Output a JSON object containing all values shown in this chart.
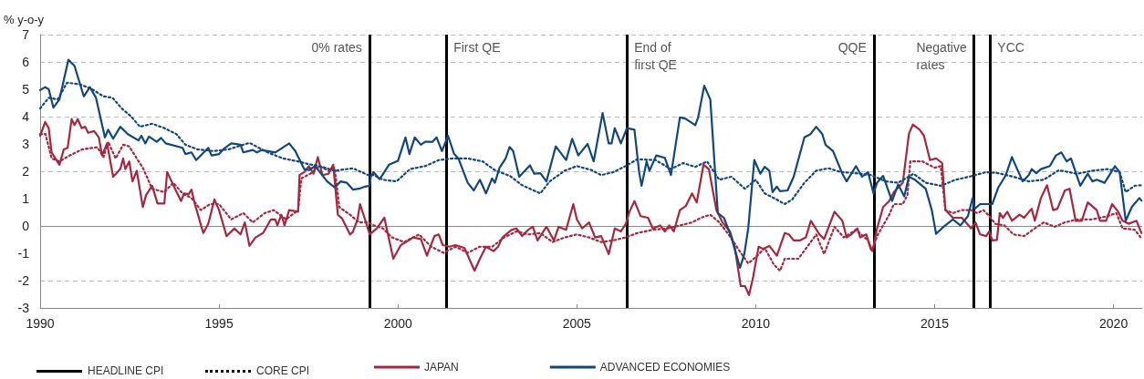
{
  "chart_data": {
    "type": "line",
    "ylabel": "% y-o-y",
    "xlim": [
      1990,
      2020.8
    ],
    "xticks": [
      1990,
      1995,
      2000,
      2005,
      2010,
      2015,
      2020
    ],
    "ylim": [
      -3,
      7
    ],
    "yticks": [
      -3,
      -2,
      -1,
      0,
      1,
      2,
      3,
      4,
      5,
      6,
      7
    ],
    "grid": "y",
    "legend": "bottom left",
    "marker": "none",
    "annotations": [
      "HEADLINE CPI",
      "CORE CPI"
    ],
    "ref_lines": [
      {
        "axis": "y",
        "value": 0,
        "color": "#8c8c8c"
      },
      {
        "axis": "x",
        "value": 1999.2,
        "label": "0% rates",
        "color": "#000000"
      },
      {
        "axis": "x",
        "value": 2001.35,
        "label": "First QE",
        "color": "#000000"
      },
      {
        "axis": "x",
        "value": 2006.4,
        "label": "End of\nfirst QE",
        "color": "#000000"
      },
      {
        "axis": "x",
        "value": 2013.3,
        "label": "QQE",
        "color": "#000000"
      },
      {
        "axis": "x",
        "value": 2016.1,
        "label": "Negative\nrates",
        "color": "#000000"
      },
      {
        "axis": "x",
        "value": 2016.55,
        "label": "YCC",
        "color": "#000000"
      }
    ],
    "series": [
      {
        "name": "JAPAN",
        "color": "#a5283f",
        "line_style": "solid",
        "x": [
          1990,
          1990.14,
          1990.24,
          1990.32,
          1990.54,
          1990.66,
          1990.77,
          1990.88,
          1990.96,
          1991.05,
          1991.16,
          1991.26,
          1991.34,
          1991.51,
          1991.64,
          1991.73,
          1991.87,
          1992.04,
          1992.24,
          1992.32,
          1992.38,
          1992.49,
          1992.58,
          1992.7,
          1992.87,
          1992.96,
          1993.13,
          1993.28,
          1993.47,
          1993.55,
          1993.77,
          1993.94,
          1994.02,
          1994.15,
          1994.23,
          1994.32,
          1994.56,
          1994.7,
          1994.87,
          1995,
          1995.21,
          1995.43,
          1995.6,
          1995.72,
          1995.85,
          1996.02,
          1996.23,
          1996.45,
          1996.57,
          1996.63,
          1996.74,
          1996.83,
          1996.96,
          1997.21,
          1997.25,
          1997.38,
          1997.51,
          1997.64,
          1997.76,
          1997.89,
          1998.06,
          1998.19,
          1998.23,
          1998.32,
          1998.44,
          1998.66,
          1998.74,
          1998.87,
          1998.94,
          1999.08,
          1999.21,
          1999.41,
          1999.62,
          1999.87,
          2000.08,
          2000.3,
          2000.42,
          2000.64,
          2000.81,
          2001.02,
          2001.14,
          2001.25,
          2001.44,
          2001.61,
          2001.86,
          2002.14,
          2002.29,
          2002.46,
          2002.67,
          2002.8,
          2002.92,
          2003.18,
          2003.31,
          2003.47,
          2003.64,
          2003.77,
          2003.9,
          2004.15,
          2004.36,
          2004.49,
          2004.7,
          2004.9,
          2005,
          2005.15,
          2005.34,
          2005.51,
          2005.68,
          2005.89,
          2006.06,
          2006.23,
          2006.37,
          2006.47,
          2006.61,
          2006.78,
          2006.99,
          2007.12,
          2007.33,
          2007.46,
          2007.58,
          2007.71,
          2007.88,
          2008.05,
          2008.22,
          2008.35,
          2008.54,
          2008.69,
          2008.9,
          2009.07,
          2009.28,
          2009.41,
          2009.58,
          2009.7,
          2009.81,
          2009.92,
          2010.08,
          2010.21,
          2010.38,
          2010.59,
          2010.81,
          2010.93,
          2011.06,
          2011.23,
          2011.4,
          2011.54,
          2011.78,
          2011.91,
          2012.2,
          2012.42,
          2012.54,
          2012.67,
          2012.84,
          2012.92,
          2013.09,
          2013.22,
          2013.29,
          2013.39,
          2013.56,
          2013.73,
          2013.86,
          2014.03,
          2014.11,
          2014.28,
          2014.39,
          2014.58,
          2014.7,
          2014.87,
          2015.04,
          2015.21,
          2015.3,
          2015.51,
          2015.76,
          2016.02,
          2016.14,
          2016.27,
          2016.44,
          2016.53,
          2016.61,
          2016.74,
          2016.82,
          2016.91,
          2017.03,
          2017.16,
          2017.37,
          2017.5,
          2017.71,
          2017.8,
          2017.97,
          2018.14,
          2018.31,
          2018.43,
          2018.64,
          2018.77,
          2018.94,
          2019.11,
          2019.28,
          2019.53,
          2019.62,
          2019.79,
          2019.96,
          2020.13,
          2020.25,
          2020.42,
          2020.64,
          2020.78
        ],
        "values": [
          3.3,
          3.8,
          3.58,
          2.69,
          2.24,
          2.8,
          2.86,
          3.91,
          3.69,
          3.91,
          3.58,
          3.63,
          3.41,
          3.47,
          3.24,
          2.58,
          3.02,
          1.8,
          2.08,
          2.47,
          2.08,
          2.36,
          1.63,
          2.02,
          0.69,
          1.13,
          1.47,
          0.82,
          0.82,
          1.97,
          1.36,
          0.91,
          1.19,
          1.16,
          1.33,
          0.82,
          -0.26,
          0.08,
          0.97,
          0.58,
          -0.37,
          -0.09,
          -0.31,
          0.13,
          -0.73,
          -0.42,
          -0.26,
          0.24,
          0.24,
          0.02,
          0.41,
          0.02,
          0.58,
          0.52,
          1.86,
          1.97,
          2.19,
          1.91,
          2.52,
          1.86,
          1.91,
          2.24,
          1.69,
          0.41,
          0.27,
          -0.31,
          -0.22,
          0.24,
          0.8,
          0.24,
          -0.31,
          -0.09,
          0.3,
          -1.2,
          -0.7,
          -0.53,
          -0.42,
          -0.48,
          -1.09,
          -0.37,
          -0.31,
          -0.7,
          -0.76,
          -0.7,
          -0.81,
          -1.64,
          -1.2,
          -0.76,
          -0.92,
          -0.76,
          -0.42,
          -0.14,
          -0.09,
          -0.37,
          -0.14,
          -0.03,
          -0.53,
          -0.03,
          -0.53,
          -0.03,
          -0.14,
          0.8,
          0.24,
          -0.09,
          0.13,
          -0.42,
          -0.37,
          -1.03,
          -0.09,
          -0.2,
          0.08,
          0.52,
          0.91,
          0.36,
          0.3,
          -0.09,
          0.02,
          -0.2,
          0.02,
          -0.2,
          0.58,
          0.74,
          1.19,
          0.86,
          2.24,
          2.08,
          0.58,
          0.13,
          -0.2,
          -0.76,
          -2.2,
          -2.2,
          -2.53,
          -1.92,
          -0.76,
          -0.84,
          -0.73,
          -1.09,
          -0.26,
          -0.31,
          -0.53,
          -0.53,
          -0.42,
          0.19,
          -0.31,
          -0.48,
          0.52,
          0.19,
          -0.42,
          -0.31,
          -0.09,
          -0.42,
          -0.31,
          -0.87,
          -0.76,
          -0.09,
          0.69,
          0.91,
          1.24,
          1.47,
          1.58,
          3.36,
          3.71,
          3.52,
          3.3,
          2.41,
          2.47,
          2.3,
          0.58,
          0.3,
          0.3,
          -0.09,
          0.13,
          -0.31,
          -0.37,
          -0.2,
          -0.53,
          -0.51,
          0.47,
          0.3,
          0.52,
          0.19,
          0.41,
          0.3,
          0.63,
          0.19,
          1.02,
          1.49,
          0.58,
          0.63,
          1.3,
          1.36,
          0.19,
          0.19,
          0.86,
          0.58,
          0.19,
          0.19,
          0.8,
          0.52,
          0.19,
          0.08,
          0.19,
          -0.26
        ]
      },
      {
        "color": "#a5283f",
        "line_style": "dotted",
        "x": [
          1990,
          1990.15,
          1990.32,
          1990.54,
          1990.83,
          1991.17,
          1991.6,
          1991.77,
          1991.9,
          1992.11,
          1992.32,
          1992.49,
          1992.7,
          1992.87,
          1993.13,
          1993.47,
          1993.72,
          1993.98,
          1994.23,
          1994.49,
          1994.75,
          1995,
          1995.34,
          1995.68,
          1995.94,
          1996.28,
          1996.53,
          1996.87,
          1997.21,
          1997.3,
          1997.55,
          1997.81,
          1998.06,
          1998.23,
          1998.36,
          1998.66,
          1998.91,
          1999.17,
          1999.32,
          1999.58,
          1999.83,
          2000.17,
          2000.59,
          2000.93,
          2001.27,
          2001.61,
          2001.95,
          2002.29,
          2002.63,
          2002.97,
          2003.31,
          2003.64,
          2003.98,
          2004.32,
          2004.66,
          2005,
          2005.34,
          2005.68,
          2006.02,
          2006.36,
          2006.69,
          2007.12,
          2007.54,
          2007.88,
          2008.22,
          2008.47,
          2008.73,
          2008.98,
          2009.24,
          2009.58,
          2009.79,
          2010,
          2010.25,
          2010.51,
          2010.68,
          2010.81,
          2011.19,
          2011.44,
          2011.69,
          2011.91,
          2012.2,
          2012.46,
          2012.8,
          2013.14,
          2013.26,
          2013.39,
          2013.56,
          2013.73,
          2013.86,
          2014.11,
          2014.24,
          2014.32,
          2014.66,
          2015,
          2015.17,
          2015.3,
          2015.51,
          2015.76,
          2016.02,
          2016.19,
          2016.36,
          2016.53,
          2016.69,
          2016.95,
          2017.2,
          2017.5,
          2017.8,
          2018.05,
          2018.35,
          2018.64,
          2018.98,
          2019.41,
          2019.83,
          2020.08,
          2020.25,
          2020.59,
          2020.76
        ],
        "values": [
          3.36,
          3.36,
          2.47,
          2.36,
          2.58,
          2.8,
          2.88,
          2.52,
          3.08,
          2.47,
          2.97,
          2.91,
          2.47,
          2.13,
          1.36,
          1.24,
          1.58,
          1.19,
          1.02,
          0.58,
          0.8,
          0.8,
          0.24,
          0.47,
          0.13,
          0.47,
          0.58,
          0.24,
          0.58,
          1.74,
          1.91,
          2.19,
          2.02,
          2.13,
          0.69,
          0.41,
          0.13,
          0.13,
          0.02,
          -0.09,
          -0.42,
          -0.59,
          -0.31,
          -0.76,
          -0.98,
          -0.76,
          -0.98,
          -0.76,
          -0.76,
          -0.42,
          -0.2,
          -0.31,
          -0.26,
          -0.59,
          -0.42,
          -0.31,
          -0.42,
          -0.59,
          -0.53,
          -0.42,
          -0.26,
          -0.14,
          -0.09,
          0.02,
          0.13,
          0.3,
          0.41,
          0.13,
          -0.31,
          -0.98,
          -1.37,
          -1.14,
          -0.81,
          -1.42,
          -1.64,
          -1.2,
          -1.2,
          -0.76,
          -0.31,
          -1.03,
          -0.03,
          -0.42,
          -0.14,
          -0.53,
          -0.92,
          -0.37,
          0.02,
          0.41,
          0.8,
          0.8,
          1.13,
          2.36,
          2.36,
          2.13,
          2.19,
          0.58,
          0.47,
          0.58,
          0.58,
          0.47,
          0.58,
          0.36,
          0.08,
          0.02,
          -0.31,
          -0.37,
          -0.09,
          0.13,
          -0.03,
          0.13,
          0.24,
          0.24,
          0.36,
          0.47,
          -0.09,
          -0.14,
          -0.42
        ]
      },
      {
        "name": "ADVANCED ECONOMIES",
        "color": "#12467e",
        "line_style": "solid",
        "x": [
          1990,
          1990.14,
          1990.24,
          1990.37,
          1990.54,
          1990.79,
          1990.96,
          1991.22,
          1991.39,
          1991.56,
          1991.81,
          1991.9,
          1992.04,
          1992.24,
          1992.45,
          1992.75,
          1992.83,
          1992.94,
          1993.04,
          1993.26,
          1993.38,
          1993.51,
          1993.98,
          1994.06,
          1994.23,
          1994.36,
          1994.7,
          1994.79,
          1995,
          1995.13,
          1995.34,
          1995.6,
          1995.68,
          1995.94,
          1996.06,
          1996.19,
          1996.57,
          1996.96,
          1997.13,
          1997.38,
          1997.51,
          1997.69,
          1998.02,
          1998.23,
          1998.4,
          1998.57,
          1998.74,
          1998.91,
          1999.08,
          1999.21,
          1999.24,
          1999.32,
          1999.49,
          1999.75,
          2000,
          2000.21,
          2000.32,
          2000.47,
          2000.64,
          2000.76,
          2000.97,
          2001.08,
          2001.23,
          2001.4,
          2001.57,
          2001.69,
          2001.95,
          2002.12,
          2002.29,
          2002.46,
          2002.63,
          2002.71,
          2002.84,
          2003.01,
          2003.12,
          2003.22,
          2003.39,
          2003.69,
          2003.81,
          2003.98,
          2004.15,
          2004.41,
          2004.7,
          2004.87,
          2005.04,
          2005.3,
          2005.47,
          2005.72,
          2005.89,
          2005.97,
          2006.06,
          2006.23,
          2006.4,
          2006.61,
          2006.74,
          2006.81,
          2006.95,
          2007.03,
          2007.22,
          2007.46,
          2007.63,
          2007.88,
          2008.03,
          2008.31,
          2008.39,
          2008.56,
          2008.73,
          2008.94,
          2009.11,
          2009.32,
          2009.56,
          2009.68,
          2009.79,
          2009.96,
          2010.13,
          2010.25,
          2010.38,
          2010.47,
          2010.59,
          2010.68,
          2010.89,
          2011.06,
          2011.36,
          2011.53,
          2011.69,
          2011.86,
          2011.95,
          2012.16,
          2012.42,
          2012.54,
          2012.8,
          2012.97,
          2013.14,
          2013.29,
          2013.39,
          2013.56,
          2013.81,
          2013.98,
          2014.15,
          2014.28,
          2014.45,
          2014.75,
          2014.92,
          2015.04,
          2015.25,
          2015.51,
          2015.72,
          2015.93,
          2016.06,
          2016.12,
          2016.27,
          2016.48,
          2016.61,
          2016.78,
          2016.99,
          2017.16,
          2017.29,
          2017.46,
          2017.63,
          2017.71,
          2017.84,
          2017.97,
          2018.22,
          2018.39,
          2018.54,
          2018.69,
          2018.81,
          2019.07,
          2019.28,
          2019.41,
          2019.53,
          2019.75,
          2020.04,
          2020.17,
          2020.34,
          2020.51,
          2020.72,
          2020.78
        ],
        "values": [
          4.97,
          5.08,
          5,
          4.33,
          4.63,
          6.08,
          5.86,
          4.74,
          5.08,
          4.69,
          3.24,
          3.52,
          3.19,
          3.63,
          3.36,
          3.13,
          3.3,
          3.02,
          3.27,
          3.08,
          3.22,
          3.02,
          2.86,
          2.63,
          2.69,
          2.41,
          2.86,
          2.58,
          2.63,
          2.82,
          3.02,
          2.97,
          2.69,
          2.78,
          2.69,
          2.78,
          2.69,
          3.02,
          2.74,
          2.08,
          2.04,
          2.19,
          1.63,
          1.41,
          1.63,
          1.58,
          1.33,
          1.36,
          1.44,
          1.47,
          1.8,
          1.97,
          1.71,
          2.24,
          2.38,
          3.24,
          2.63,
          3.24,
          2.97,
          3.08,
          3.08,
          3.24,
          2.74,
          3.3,
          2.63,
          2.47,
          1.58,
          1.3,
          1.69,
          1.19,
          1.74,
          1.58,
          2.13,
          2.47,
          2.89,
          2.74,
          1.8,
          2.22,
          1.91,
          1.93,
          1.63,
          2.91,
          2.41,
          3.19,
          2.58,
          3,
          2.36,
          4.13,
          3.02,
          3.02,
          3.58,
          3.02,
          3.58,
          3.52,
          1.97,
          1.47,
          2.36,
          2.02,
          2.58,
          2.49,
          1.86,
          3.97,
          3.93,
          3.69,
          3.97,
          5.13,
          4.63,
          0.47,
          0.3,
          -0.42,
          -1.53,
          -1.03,
          -0.09,
          2.41,
          1.91,
          2.16,
          2.02,
          1.24,
          1.44,
          1.27,
          1.3,
          1.8,
          3.24,
          3.36,
          3.63,
          3.36,
          2.97,
          2.74,
          1.91,
          1.63,
          2.19,
          1.8,
          1.97,
          1.19,
          1.58,
          1.83,
          0.91,
          1.52,
          1.08,
          1.8,
          1.69,
          1.36,
          0.58,
          -0.29,
          -0.03,
          0.24,
          0.02,
          0.36,
          1.02,
          0.63,
          0.8,
          0.8,
          0.8,
          1.41,
          1.86,
          2.52,
          2.13,
          1.63,
          1.86,
          2.08,
          1.93,
          2.08,
          2.19,
          2.58,
          2.69,
          2.36,
          2.47,
          1.47,
          1.91,
          1.63,
          1.69,
          1.58,
          2.19,
          1.97,
          0.19,
          0.69,
          1.02,
          0.93
        ]
      },
      {
        "color": "#12467e",
        "line_style": "dotted",
        "x": [
          1990,
          1990.24,
          1990.49,
          1990.75,
          1991.09,
          1991.43,
          1991.77,
          1992.02,
          1992.28,
          1992.53,
          1992.79,
          1993.13,
          1993.47,
          1993.81,
          1994.06,
          1994.4,
          1994.83,
          1995.26,
          1995.85,
          1996.36,
          1996.79,
          1997.21,
          1997.47,
          1997.81,
          1998.23,
          1998.74,
          1999.17,
          1999.32,
          1999.58,
          1999.96,
          2000.34,
          2000.76,
          2001.14,
          2001.53,
          2001.95,
          2002.37,
          2002.71,
          2003.14,
          2003.47,
          2003.98,
          2004.24,
          2004.66,
          2005,
          2005.42,
          2005.68,
          2006.02,
          2006.36,
          2006.69,
          2007.2,
          2007.63,
          2007.97,
          2008.31,
          2008.64,
          2008.98,
          2009.32,
          2009.7,
          2010,
          2010.25,
          2010.51,
          2010.81,
          2011.02,
          2011.36,
          2011.69,
          2012.03,
          2012.37,
          2012.8,
          2013.22,
          2013.64,
          2013.98,
          2014.41,
          2014.75,
          2015.17,
          2015.59,
          2016.02,
          2016.44,
          2016.78,
          2017.2,
          2017.63,
          2018.05,
          2018.47,
          2018.98,
          2019.41,
          2019.83,
          2020.17,
          2020.34,
          2020.59,
          2020.76
        ],
        "values": [
          4.3,
          4.69,
          4.63,
          5.24,
          5.19,
          5.02,
          4.74,
          4.69,
          4.3,
          4.02,
          3.63,
          3.74,
          3.58,
          3.36,
          2.97,
          2.8,
          2.74,
          2.8,
          3.04,
          2.69,
          2.47,
          2.36,
          2.27,
          2.19,
          2.02,
          2.11,
          1.86,
          1.86,
          1.69,
          1.63,
          2.08,
          2.19,
          2.41,
          2.47,
          2.47,
          2.36,
          2.04,
          1.82,
          1.49,
          1.19,
          1.63,
          2.02,
          2.19,
          2.04,
          1.86,
          1.97,
          2.19,
          2.44,
          2.41,
          2.08,
          2.3,
          2.16,
          2.36,
          1.69,
          1.8,
          1.36,
          1.69,
          1.19,
          1.02,
          0.8,
          0.97,
          1.58,
          2.02,
          2.11,
          1.97,
          1.93,
          1.86,
          1.63,
          1.58,
          1.91,
          1.58,
          1.47,
          1.69,
          1.82,
          1.97,
          1.93,
          1.8,
          1.63,
          1.69,
          2.04,
          1.91,
          2.02,
          2.08,
          1.97,
          1.24,
          1.47,
          1.49
        ]
      }
    ]
  }
}
